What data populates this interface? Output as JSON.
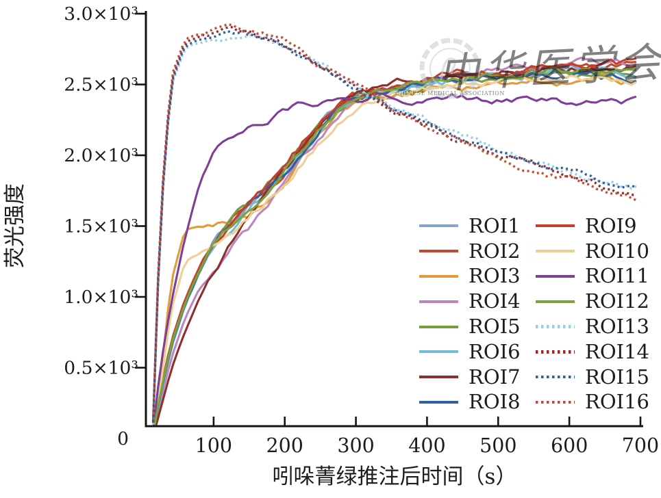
{
  "watermark": {
    "text": "中华医学会",
    "seal_ring_text": "CHINESE MEDICAL ASSOCIATION",
    "color": "#c9c9c9"
  },
  "axis_color": "#141414",
  "chart_data": {
    "type": "line",
    "title": "",
    "xlabel": "吲哚菁绿推注后时间（s）",
    "ylabel": "荧光强度",
    "xlim": [
      0,
      700
    ],
    "ylim": [
      0,
      3000
    ],
    "grid": false,
    "legend_position": "inside lower right, two columns",
    "x_ticks": [
      100,
      200,
      300,
      400,
      500,
      600,
      700
    ],
    "y_ticks": [
      0,
      500,
      1000,
      1500,
      2000,
      2500,
      3000
    ],
    "y_tick_labels": [
      "0",
      "0.5×10³",
      "1.0×10³",
      "1.5×10³",
      "2.0×10³",
      "2.5×10³",
      "3.0×10³"
    ],
    "x": [
      15,
      25,
      40,
      60,
      80,
      100,
      125,
      150,
      175,
      200,
      225,
      250,
      275,
      300,
      325,
      350,
      375,
      400,
      425,
      450,
      475,
      500,
      525,
      550,
      575,
      600,
      625,
      650,
      675,
      700
    ],
    "series": [
      {
        "name": "ROI1",
        "color": "#8aa3c9",
        "style": "solid",
        "values": [
          30,
          310,
          640,
          960,
          1170,
          1385,
          1515,
          1645,
          1755,
          1895,
          2060,
          2215,
          2330,
          2405,
          2450,
          2465,
          2500,
          2515,
          2540,
          2550,
          2565,
          2570,
          2580,
          2575,
          2590,
          2600,
          2595,
          2605,
          2600,
          2600
        ]
      },
      {
        "name": "ROI2",
        "color": "#c2492f",
        "style": "solid",
        "values": [
          40,
          330,
          680,
          985,
          1200,
          1390,
          1545,
          1655,
          1780,
          1905,
          2075,
          2235,
          2340,
          2415,
          2455,
          2485,
          2510,
          2530,
          2545,
          2560,
          2575,
          2585,
          2590,
          2600,
          2605,
          2610,
          2615,
          2610,
          2620,
          2615
        ]
      },
      {
        "name": "ROI3",
        "color": "#e09b3d",
        "style": "solid",
        "values": [
          30,
          400,
          1100,
          1480,
          1500,
          1515,
          1555,
          1600,
          1700,
          1820,
          1980,
          2130,
          2260,
          2360,
          2400,
          2430,
          2450,
          2470,
          2480,
          2490,
          2500,
          2510,
          2515,
          2520,
          2525,
          2530,
          2520,
          2525,
          2515,
          2520
        ]
      },
      {
        "name": "ROI4",
        "color": "#bd86bd",
        "style": "solid",
        "values": [
          20,
          250,
          560,
          850,
          1060,
          1180,
          1340,
          1480,
          1630,
          1780,
          1950,
          2120,
          2280,
          2390,
          2450,
          2490,
          2520,
          2545,
          2565,
          2580,
          2600,
          2615,
          2625,
          2635,
          2645,
          2650,
          2655,
          2660,
          2655,
          2665
        ]
      },
      {
        "name": "ROI5",
        "color": "#7a9c3e",
        "style": "solid",
        "values": [
          35,
          320,
          670,
          970,
          1190,
          1380,
          1530,
          1640,
          1770,
          1890,
          2060,
          2230,
          2335,
          2410,
          2445,
          2475,
          2495,
          2520,
          2535,
          2550,
          2560,
          2570,
          2580,
          2585,
          2590,
          2595,
          2590,
          2600,
          2595,
          2590
        ]
      },
      {
        "name": "ROI6",
        "color": "#74bcd9",
        "style": "solid",
        "values": [
          25,
          290,
          630,
          940,
          1160,
          1350,
          1500,
          1615,
          1745,
          1870,
          2040,
          2205,
          2315,
          2395,
          2435,
          2460,
          2485,
          2505,
          2520,
          2535,
          2545,
          2555,
          2560,
          2565,
          2570,
          2570,
          2565,
          2575,
          2570,
          2565
        ]
      },
      {
        "name": "ROI7",
        "color": "#8e2f2b",
        "style": "solid",
        "values": [
          15,
          200,
          480,
          760,
          980,
          1170,
          1380,
          1560,
          1720,
          1870,
          2060,
          2240,
          2360,
          2430,
          2470,
          2510,
          2530,
          2545,
          2555,
          2565,
          2575,
          2585,
          2595,
          2600,
          2605,
          2610,
          2605,
          2615,
          2610,
          2605
        ]
      },
      {
        "name": "ROI8",
        "color": "#31609f",
        "style": "solid",
        "values": [
          30,
          305,
          645,
          950,
          1165,
          1360,
          1505,
          1625,
          1750,
          1880,
          2045,
          2210,
          2320,
          2400,
          2440,
          2465,
          2490,
          2510,
          2525,
          2540,
          2550,
          2555,
          2560,
          2565,
          2570,
          2575,
          2570,
          2560,
          2555,
          2550
        ]
      },
      {
        "name": "ROI9",
        "color": "#c2402e",
        "style": "solid",
        "values": [
          35,
          325,
          665,
          975,
          1195,
          1385,
          1535,
          1650,
          1775,
          1900,
          2070,
          2235,
          2345,
          2415,
          2455,
          2480,
          2505,
          2525,
          2545,
          2560,
          2570,
          2580,
          2590,
          2600,
          2610,
          2615,
          2620,
          2625,
          2630,
          2625
        ]
      },
      {
        "name": "ROI10",
        "color": "#eecf96",
        "style": "solid",
        "values": [
          25,
          350,
          900,
          1250,
          1320,
          1380,
          1450,
          1550,
          1670,
          1790,
          1950,
          2110,
          2240,
          2350,
          2400,
          2430,
          2455,
          2475,
          2490,
          2505,
          2515,
          2525,
          2530,
          2540,
          2545,
          2550,
          2545,
          2550,
          2545,
          2540
        ]
      },
      {
        "name": "ROI11",
        "color": "#7e3f98",
        "style": "solid",
        "values": [
          50,
          500,
          950,
          1420,
          1800,
          2010,
          2130,
          2210,
          2270,
          2320,
          2355,
          2375,
          2390,
          2400,
          2410,
          2420,
          2415,
          2420,
          2410,
          2405,
          2400,
          2395,
          2390,
          2385,
          2390,
          2380,
          2385,
          2375,
          2380,
          2370
        ]
      },
      {
        "name": "ROI12",
        "color": "#7ba23f",
        "style": "solid",
        "values": [
          30,
          315,
          655,
          960,
          1175,
          1370,
          1515,
          1635,
          1760,
          1885,
          2055,
          2220,
          2330,
          2405,
          2445,
          2470,
          2495,
          2515,
          2530,
          2545,
          2555,
          2565,
          2575,
          2585,
          2590,
          2600,
          2605,
          2600,
          2610,
          2605
        ]
      },
      {
        "name": "ROI13",
        "color": "#96cfe8",
        "style": "dashed",
        "values": [
          100,
          1500,
          2480,
          2760,
          2800,
          2830,
          2845,
          2840,
          2820,
          2770,
          2700,
          2625,
          2555,
          2490,
          2410,
          2345,
          2285,
          2230,
          2175,
          2125,
          2075,
          2030,
          1990,
          1950,
          1915,
          1885,
          1855,
          1825,
          1800,
          1780
        ]
      },
      {
        "name": "ROI14",
        "color": "#8e2f2b",
        "style": "dashed",
        "values": [
          120,
          1550,
          2520,
          2800,
          2830,
          2855,
          2875,
          2860,
          2835,
          2780,
          2705,
          2625,
          2550,
          2480,
          2400,
          2330,
          2270,
          2210,
          2155,
          2105,
          2050,
          2005,
          1960,
          1920,
          1880,
          1850,
          1815,
          1785,
          1755,
          1730
        ]
      },
      {
        "name": "ROI15",
        "color": "#31609f",
        "style": "dashed",
        "values": [
          110,
          1520,
          2500,
          2780,
          2815,
          2840,
          2860,
          2850,
          2825,
          2775,
          2700,
          2620,
          2545,
          2480,
          2400,
          2335,
          2275,
          2220,
          2165,
          2115,
          2065,
          2020,
          1975,
          1935,
          1900,
          1870,
          1840,
          1810,
          1785,
          1760
        ]
      },
      {
        "name": "ROI16",
        "color": "#c74a35",
        "style": "dashed",
        "values": [
          130,
          1580,
          2550,
          2820,
          2845,
          2870,
          2890,
          2875,
          2845,
          2790,
          2710,
          2625,
          2545,
          2470,
          2390,
          2320,
          2255,
          2195,
          2140,
          2085,
          2035,
          1985,
          1940,
          1900,
          1860,
          1825,
          1790,
          1760,
          1730,
          1705
        ]
      }
    ]
  }
}
